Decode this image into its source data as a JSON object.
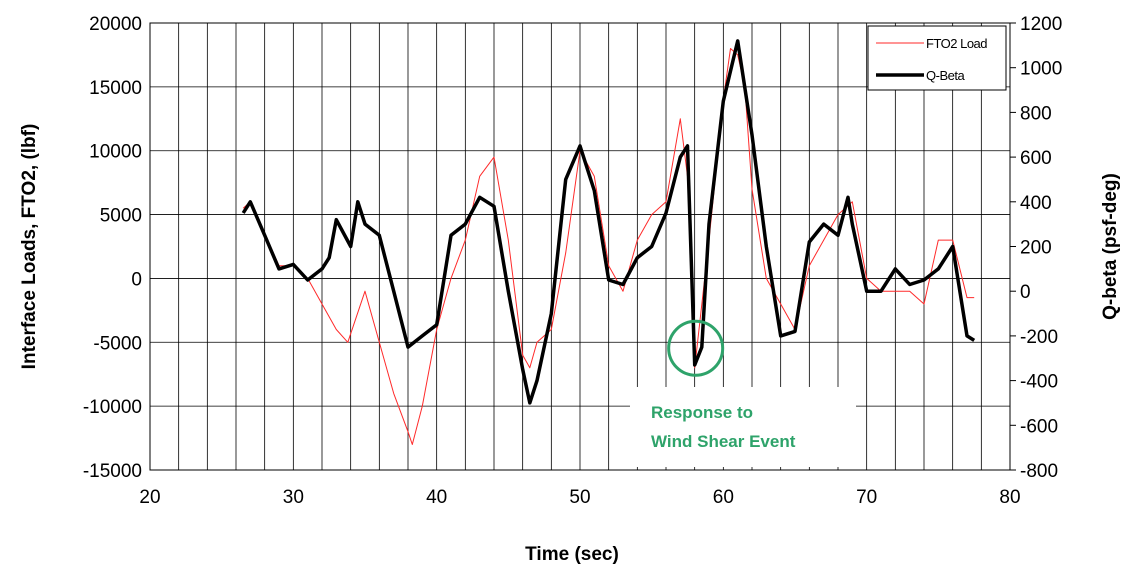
{
  "chart_data": {
    "type": "line",
    "xlabel": "Time (sec)",
    "ylabel": "Interface Loads, FTO2, (lbf)",
    "y2label": "Q-beta (psf-deg)",
    "xlim": [
      20,
      80
    ],
    "ylim": [
      -15000,
      20000
    ],
    "y2lim": [
      -800,
      1200
    ],
    "x_ticks": [
      "20",
      "30",
      "40",
      "50",
      "60",
      "70",
      "80"
    ],
    "y_ticks": [
      "-15000",
      "-10000",
      "-5000",
      "0",
      "5000",
      "10000",
      "15000",
      "20000"
    ],
    "y2_ticks": [
      "-800",
      "-600",
      "-400",
      "-200",
      "0",
      "200",
      "400",
      "600",
      "800",
      "1000",
      "1200"
    ],
    "grid": true,
    "legend_position": "top-right",
    "colors": {
      "ftoload": "#ff2a2a",
      "qbeta": "#000000",
      "annotation": "#2ea36a"
    },
    "series": [
      {
        "name": "FTO2 Load",
        "axis": "left",
        "x": [
          26.5,
          27,
          28,
          29,
          30,
          31,
          32,
          33,
          33.8,
          35,
          36,
          37,
          38,
          38.3,
          39,
          40,
          41,
          42,
          43,
          44,
          45,
          46,
          46.5,
          47,
          48,
          49,
          50,
          51,
          52,
          53,
          54,
          55,
          56,
          57,
          57.5,
          58,
          59,
          60,
          60.5,
          61,
          61.5,
          62,
          63,
          64,
          65,
          66,
          67,
          68,
          69,
          70,
          71,
          72,
          73,
          74,
          75,
          76,
          77,
          77.5
        ],
        "values": [
          5500,
          6000,
          3500,
          1000,
          1000,
          0,
          -2000,
          -4000,
          -5000,
          -1000,
          -5000,
          -9000,
          -12000,
          -13000,
          -10000,
          -4000,
          0,
          3000,
          8000,
          9500,
          3000,
          -6000,
          -7000,
          -5000,
          -4000,
          2000,
          10000,
          8000,
          1000,
          -1000,
          3000,
          5000,
          6000,
          12500,
          8000,
          -7000,
          3000,
          14000,
          18000,
          17500,
          15000,
          7000,
          0,
          -2000,
          -4000,
          1000,
          3000,
          5000,
          6000,
          0,
          -1000,
          -1000,
          -1000,
          -2000,
          3000,
          3000,
          -1500,
          -1500
        ]
      },
      {
        "name": "Q-Beta",
        "axis": "right",
        "x": [
          26.5,
          27,
          28,
          29,
          30,
          31,
          32,
          32.5,
          33,
          34,
          34.5,
          35,
          36,
          37,
          38,
          39,
          40,
          41,
          42,
          43,
          44,
          45,
          46,
          46.5,
          47,
          48,
          49,
          50,
          51,
          52,
          53,
          54,
          55,
          56,
          57,
          57.5,
          58,
          58.5,
          59,
          60,
          61,
          62,
          63,
          64,
          65,
          66,
          67,
          68,
          68.7,
          69,
          70,
          71,
          72,
          73,
          74,
          75,
          76,
          77,
          77.5
        ],
        "values": [
          350,
          400,
          250,
          100,
          120,
          50,
          100,
          150,
          320,
          200,
          400,
          300,
          250,
          0,
          -250,
          -200,
          -150,
          250,
          300,
          420,
          380,
          0,
          -350,
          -500,
          -400,
          -100,
          500,
          650,
          450,
          50,
          30,
          150,
          200,
          350,
          600,
          650,
          -330,
          -250,
          300,
          850,
          1120,
          700,
          200,
          -200,
          -180,
          220,
          300,
          250,
          420,
          300,
          0,
          0,
          100,
          30,
          50,
          100,
          200,
          -200,
          -220
        ]
      }
    ],
    "annotation": "Response to Wind Shear Event",
    "annotation_lines": [
      "Response to",
      "Wind Shear Event"
    ],
    "annotation_point": {
      "x": 58,
      "y2": -300
    }
  }
}
